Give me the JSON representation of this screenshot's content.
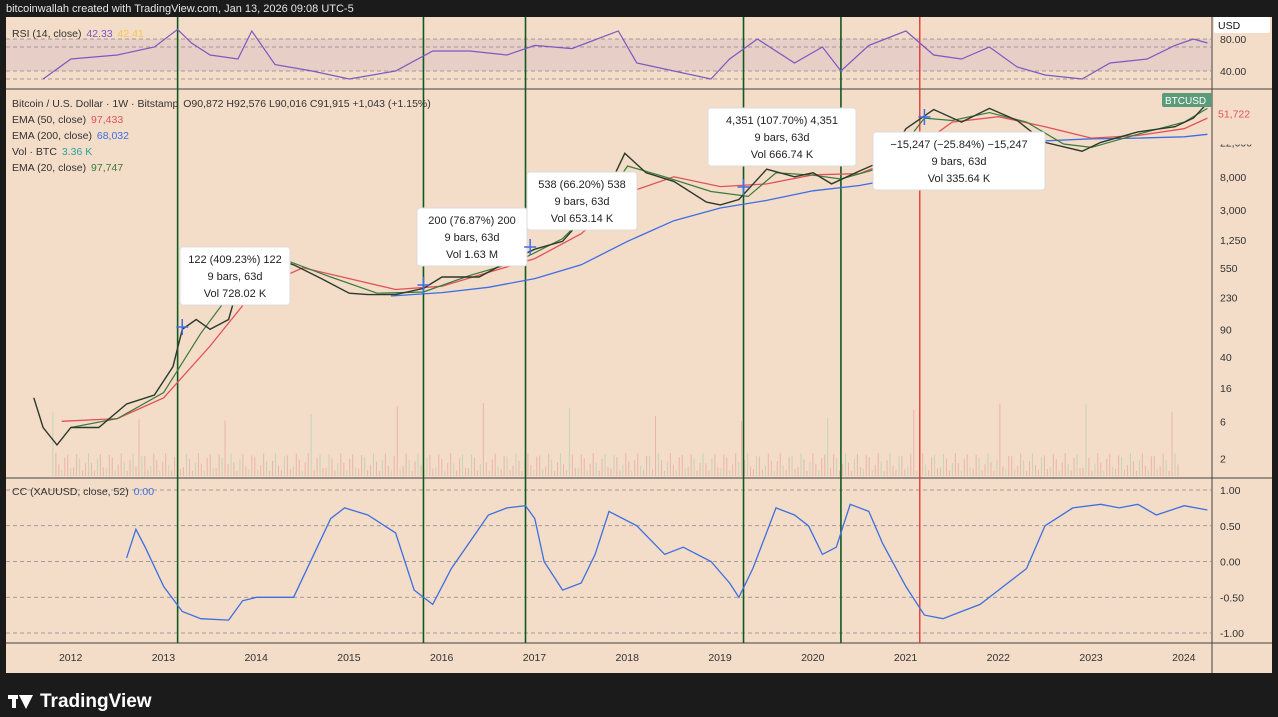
{
  "header": {
    "text": "bitcoinwallah created with TradingView.com, Jan 13, 2026 09:08 UTC-5"
  },
  "footer": {
    "brand": "TradingView"
  },
  "colors": {
    "bg": "#f3dcc8",
    "price": "#2b3a2b",
    "ema50": "#e0525b",
    "ema200": "#3c6ee6",
    "ema20": "#3a7a3a",
    "rsi": "#7e57c2",
    "rsi_ma": "#f2c94c",
    "cc": "#3d6fe0",
    "green_line": "#0f5a1f",
    "red_line": "#e53935"
  },
  "rsi_panel": {
    "label": "RSI (14, close)",
    "value1": "42.33",
    "value2": "42.41",
    "ticks": [
      "80.00",
      "40.00"
    ]
  },
  "main_legend": {
    "symbol": "Bitcoin / U.S. Dollar · 1W · Bitstamp",
    "ohlc": "O90,872 H92,576 L90,016 C91,915 +1,043 (+1.15%)",
    "ema50_label": "EMA (50, close)",
    "ema50_value": "97,433",
    "ema200_label": "EMA (200, close)",
    "ema200_value": "68,032",
    "vol_label": "Vol · BTC",
    "vol_value": "3.36 K",
    "ema20_label": "EMA (20, close)",
    "ema20_value": "97,747"
  },
  "price_axis": {
    "ticks": [
      "22,000",
      "8,000",
      "3,000",
      "1,250",
      "550",
      "230",
      "90",
      "40",
      "16",
      "6",
      "2"
    ],
    "symbol_tag": "BTCUSD",
    "currency_tag": "USD",
    "last_price_tag": "51,722"
  },
  "cc_panel": {
    "label": "CC (XAUUSD, close, 52)",
    "value": "0.00",
    "ticks": [
      "1.00",
      "0.50",
      "0.00",
      "-0.50",
      "-1.00"
    ]
  },
  "time_axis": {
    "labels": [
      "2012",
      "2013",
      "2014",
      "2015",
      "2016",
      "2017",
      "2018",
      "2019",
      "2020",
      "2021",
      "2022",
      "2023",
      "2024"
    ]
  },
  "annotations": [
    {
      "line1": "122 (409.23%) 122",
      "line2": "9 bars, 63d",
      "line3": "Vol 728.02 K"
    },
    {
      "line1": "200 (76.87%) 200",
      "line2": "9 bars, 63d",
      "line3": "Vol 1.63 M"
    },
    {
      "line1": "538 (66.20%) 538",
      "line2": "9 bars, 63d",
      "line3": "Vol 653.14 K"
    },
    {
      "line1": "4,351 (107.70%) 4,351",
      "line2": "9 bars, 63d",
      "line3": "Vol 666.74 K"
    },
    {
      "line1": "−15,247 (−25.84%) −15,247",
      "line2": "9 bars, 63d",
      "line3": "Vol 335.64 K"
    }
  ],
  "chart_data": {
    "type": "line",
    "scale": "log",
    "xlim": [
      2011.3,
      2024.3
    ],
    "ylim": [
      1.2,
      100000
    ],
    "price": {
      "x": [
        2011.6,
        2011.7,
        2011.85,
        2012.0,
        2012.3,
        2012.6,
        2012.9,
        2013.1,
        2013.2,
        2013.35,
        2013.5,
        2013.7,
        2013.92,
        2014.1,
        2014.4,
        2014.7,
        2015.0,
        2015.2,
        2015.5,
        2015.8,
        2016.0,
        2016.4,
        2016.7,
        2017.0,
        2017.3,
        2017.6,
        2017.8,
        2017.97,
        2018.2,
        2018.5,
        2018.85,
        2019.0,
        2019.2,
        2019.5,
        2019.8,
        2020.0,
        2020.2,
        2020.5,
        2020.8,
        2021.0,
        2021.3,
        2021.6,
        2021.9,
        2022.2,
        2022.5,
        2022.9,
        2023.1,
        2023.5,
        2023.9,
        2024.1,
        2024.25
      ],
      "y": [
        12,
        5,
        3,
        5,
        5,
        10,
        13,
        30,
        90,
        120,
        90,
        120,
        1000,
        800,
        600,
        400,
        260,
        250,
        250,
        300,
        420,
        420,
        650,
        950,
        1200,
        3000,
        6000,
        16000,
        9000,
        7000,
        3800,
        3500,
        4100,
        10000,
        8000,
        9000,
        6500,
        9500,
        13500,
        33000,
        58000,
        40000,
        60000,
        42000,
        22000,
        17000,
        22000,
        30000,
        35000,
        45000,
        70000
      ]
    },
    "ema50": {
      "x": [
        2011.9,
        2012.5,
        2013.0,
        2013.5,
        2014.0,
        2014.5,
        2015.0,
        2015.5,
        2016.0,
        2016.5,
        2017.0,
        2017.5,
        2018.0,
        2018.5,
        2019.0,
        2019.5,
        2020.0,
        2020.5,
        2021.0,
        2021.5,
        2022.0,
        2022.5,
        2023.0,
        2023.5,
        2024.0,
        2024.25
      ],
      "y": [
        6,
        6.5,
        12,
        55,
        300,
        550,
        400,
        290,
        320,
        480,
        720,
        1500,
        5000,
        8000,
        6000,
        6500,
        8500,
        8800,
        15000,
        40000,
        47000,
        35000,
        25000,
        27000,
        33000,
        45000
      ]
    },
    "ema200": {
      "x": [
        2015.45,
        2016.0,
        2016.5,
        2017.0,
        2017.5,
        2018.0,
        2018.5,
        2019.0,
        2019.5,
        2020.0,
        2020.5,
        2021.0,
        2021.5,
        2022.0,
        2022.5,
        2023.0,
        2023.5,
        2024.0,
        2024.25
      ],
      "y": [
        240,
        265,
        310,
        400,
        600,
        1200,
        2200,
        3200,
        4000,
        5300,
        6200,
        8000,
        13000,
        19000,
        23000,
        24500,
        25000,
        26000,
        28000
      ]
    },
    "ema20": {
      "x": [
        2012.0,
        2012.5,
        2013.0,
        2013.4,
        2013.9,
        2014.3,
        2014.8,
        2015.3,
        2015.8,
        2016.3,
        2016.8,
        2017.3,
        2017.8,
        2018.0,
        2018.4,
        2018.9,
        2019.3,
        2019.6,
        2020.0,
        2020.3,
        2020.8,
        2021.2,
        2021.5,
        2021.9,
        2022.3,
        2022.7,
        2023.0,
        2023.5,
        2024.0,
        2024.25
      ],
      "y": [
        5,
        6.5,
        14,
        80,
        500,
        700,
        420,
        260,
        270,
        440,
        650,
        1300,
        5000,
        11000,
        8000,
        5200,
        4500,
        9000,
        8400,
        7500,
        11000,
        45000,
        42000,
        53000,
        40000,
        21000,
        19000,
        28000,
        40000,
        60000
      ]
    },
    "rsi": {
      "x": [
        2011.3,
        2011.7,
        2012.0,
        2012.5,
        2012.9,
        2013.15,
        2013.3,
        2013.5,
        2013.8,
        2013.95,
        2014.2,
        2014.6,
        2015.0,
        2015.5,
        2015.9,
        2016.3,
        2016.7,
        2017.0,
        2017.4,
        2017.9,
        2018.1,
        2018.5,
        2018.9,
        2019.1,
        2019.4,
        2019.8,
        2020.1,
        2020.3,
        2020.6,
        2021.0,
        2021.3,
        2021.6,
        2021.9,
        2022.2,
        2022.5,
        2022.9,
        2023.2,
        2023.6,
        2023.9,
        2024.1,
        2024.25
      ],
      "y": [
        null,
        30,
        55,
        60,
        70,
        92,
        75,
        60,
        55,
        90,
        48,
        40,
        30,
        40,
        65,
        65,
        60,
        72,
        68,
        90,
        50,
        40,
        30,
        55,
        80,
        50,
        70,
        40,
        72,
        90,
        60,
        55,
        70,
        45,
        35,
        30,
        50,
        55,
        72,
        80,
        75
      ]
    },
    "cc": {
      "x": [
        2012.6,
        2012.7,
        2012.8,
        2013.0,
        2013.2,
        2013.4,
        2013.7,
        2013.85,
        2014.0,
        2014.4,
        2014.8,
        2014.95,
        2015.2,
        2015.5,
        2015.7,
        2015.9,
        2016.1,
        2016.5,
        2016.7,
        2016.9,
        2017.0,
        2017.1,
        2017.3,
        2017.5,
        2017.65,
        2017.8,
        2018.1,
        2018.4,
        2018.6,
        2018.9,
        2019.1,
        2019.2,
        2019.35,
        2019.6,
        2019.8,
        2019.95,
        2020.1,
        2020.25,
        2020.4,
        2020.6,
        2020.75,
        2021.0,
        2021.2,
        2021.4,
        2021.6,
        2021.8,
        2022.0,
        2022.3,
        2022.5,
        2022.8,
        2023.1,
        2023.3,
        2023.5,
        2023.7,
        2024.0,
        2024.25
      ],
      "y": [
        0.05,
        0.45,
        0.2,
        -0.35,
        -0.7,
        -0.8,
        -0.82,
        -0.55,
        -0.5,
        -0.5,
        0.6,
        0.75,
        0.65,
        0.4,
        -0.4,
        -0.6,
        -0.1,
        0.65,
        0.75,
        0.78,
        0.6,
        0.0,
        -0.4,
        -0.3,
        0.1,
        0.7,
        0.5,
        0.1,
        0.2,
        0.0,
        -0.3,
        -0.5,
        -0.1,
        0.75,
        0.65,
        0.5,
        0.1,
        0.2,
        0.8,
        0.7,
        0.25,
        -0.35,
        -0.75,
        -0.8,
        -0.7,
        -0.6,
        -0.4,
        -0.1,
        0.5,
        0.75,
        0.8,
        0.75,
        0.8,
        0.65,
        0.78,
        0.72
      ]
    },
    "green_lines": [
      2013.15,
      2015.8,
      2016.9,
      2019.25,
      2020.3
    ],
    "red_lines": [
      2021.15
    ]
  }
}
